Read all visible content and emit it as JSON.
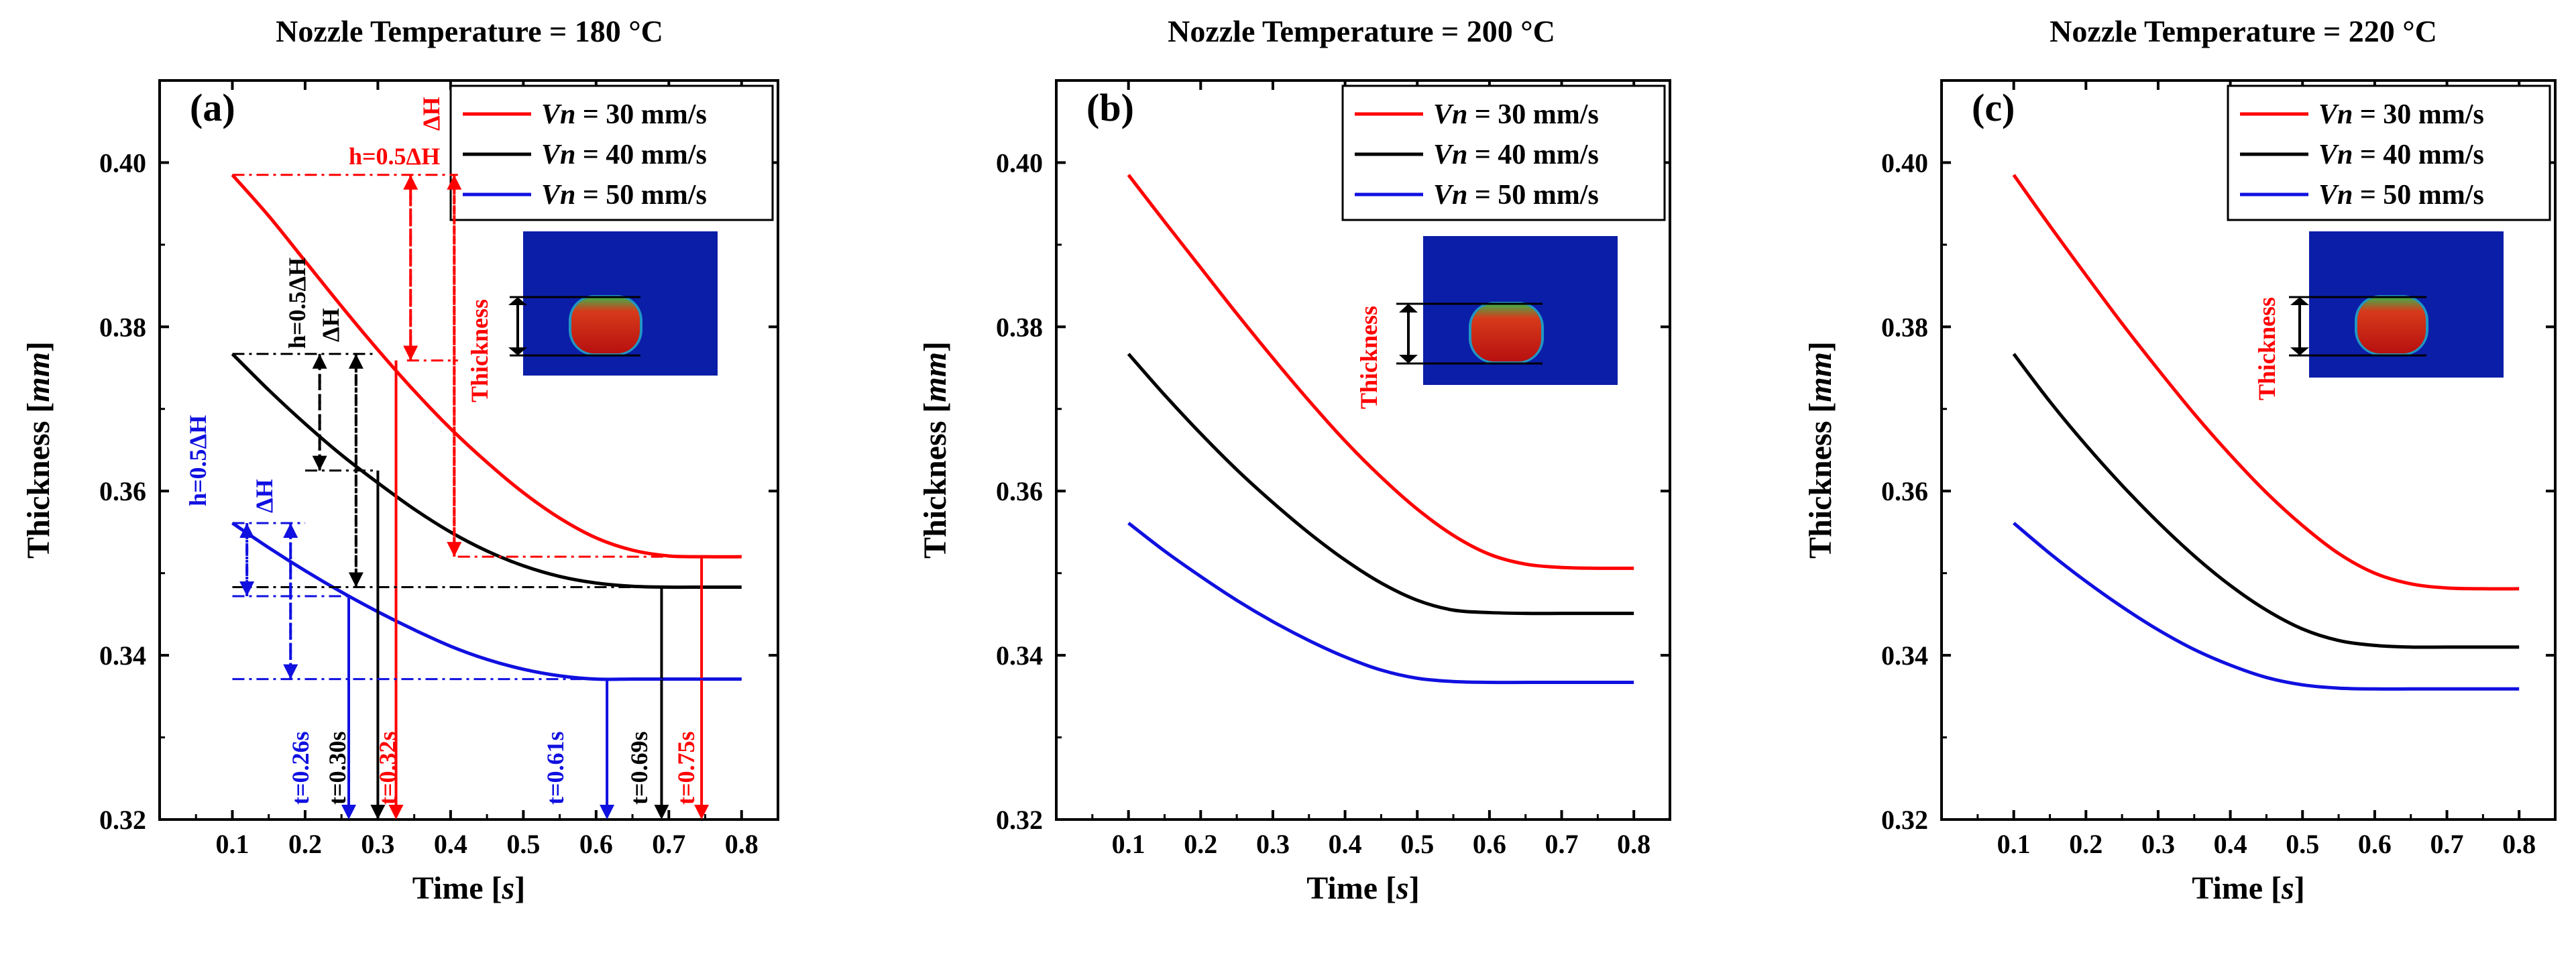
{
  "figure": {
    "y_label": "Thickness",
    "y_unit": "mm",
    "x_label": "Time",
    "x_unit": "s",
    "inset_label": "Thickness"
  },
  "colors": {
    "red": "#ff0000",
    "black": "#000000",
    "blue": "#1010e0"
  },
  "chart_data": [
    {
      "type": "line",
      "panel": "(a)",
      "title": "Nozzle Temperature = 180 °C",
      "xlabel": "Time [s]",
      "ylabel": "Thickness [mm]",
      "xlim": [
        0.0,
        0.85
      ],
      "ylim": [
        0.32,
        0.41
      ],
      "xticks": [
        0.1,
        0.2,
        0.3,
        0.4,
        0.5,
        0.6,
        0.7,
        0.8
      ],
      "xtick_labels": [
        "0.1",
        "0.2",
        "0.3",
        "0.4",
        "0.5",
        "0.6",
        "0.7",
        "0.8"
      ],
      "yticks": [
        0.32,
        0.34,
        0.36,
        0.38,
        0.4
      ],
      "ytick_labels": [
        "0.32",
        "0.34",
        "0.36",
        "0.38",
        "0.40"
      ],
      "legend_position": "top-right",
      "series": [
        {
          "name": "Vn = 30 mm/s",
          "legend_var": "Vn",
          "legend_rest": " = 30 mm/s",
          "color": "#ff0000",
          "x": [
            0.1,
            0.15,
            0.2,
            0.25,
            0.3,
            0.35,
            0.4,
            0.45,
            0.5,
            0.55,
            0.6,
            0.65,
            0.7,
            0.75,
            0.8
          ],
          "y": [
            0.3985,
            0.3935,
            0.388,
            0.3825,
            0.3772,
            0.3722,
            0.3676,
            0.3635,
            0.3598,
            0.3567,
            0.3543,
            0.3528,
            0.3521,
            0.352,
            0.352
          ]
        },
        {
          "name": "Vn = 40 mm/s",
          "legend_var": "Vn",
          "legend_rest": " = 40 mm/s",
          "color": "#000000",
          "x": [
            0.1,
            0.15,
            0.2,
            0.25,
            0.3,
            0.35,
            0.4,
            0.45,
            0.5,
            0.55,
            0.6,
            0.65,
            0.7,
            0.75,
            0.8
          ],
          "y": [
            0.3767,
            0.3723,
            0.3682,
            0.3644,
            0.361,
            0.3578,
            0.355,
            0.3527,
            0.3509,
            0.3496,
            0.3488,
            0.3484,
            0.3483,
            0.3483,
            0.3483
          ]
        },
        {
          "name": "Vn = 50 mm/s",
          "legend_var": "Vn",
          "legend_rest": " = 50 mm/s",
          "color": "#1010e0",
          "x": [
            0.1,
            0.15,
            0.2,
            0.25,
            0.3,
            0.35,
            0.4,
            0.45,
            0.5,
            0.55,
            0.6,
            0.65,
            0.7,
            0.75,
            0.8
          ],
          "y": [
            0.3561,
            0.3531,
            0.3503,
            0.3477,
            0.3453,
            0.3431,
            0.3411,
            0.3395,
            0.3383,
            0.3375,
            0.3371,
            0.3371,
            0.3371,
            0.3371,
            0.3371
          ]
        }
      ],
      "annotations": {
        "h_red": "h=0.5ΔH",
        "dh_red": "ΔH",
        "h_black": "h=0.5ΔH",
        "dh_black": "ΔH",
        "h_blue": "h=0.5ΔH",
        "dh_blue": "ΔH",
        "t_blue_half": "t=0.26s",
        "t_black_half": "t=0.30s",
        "t_red_half": "t=0.32s",
        "t_blue_full": "t=0.61s",
        "t_black_full": "t=0.69s",
        "t_red_full": "t=0.75s"
      }
    },
    {
      "type": "line",
      "panel": "(b)",
      "title": "Nozzle Temperature = 200 °C",
      "xlabel": "Time [s]",
      "ylabel": "Thickness [mm]",
      "xlim": [
        0.0,
        0.85
      ],
      "ylim": [
        0.32,
        0.41
      ],
      "xticks": [
        0.1,
        0.2,
        0.3,
        0.4,
        0.5,
        0.6,
        0.7,
        0.8
      ],
      "xtick_labels": [
        "0.1",
        "0.2",
        "0.3",
        "0.4",
        "0.5",
        "0.6",
        "0.7",
        "0.8"
      ],
      "yticks": [
        0.32,
        0.34,
        0.36,
        0.38,
        0.4
      ],
      "ytick_labels": [
        "0.32",
        "0.34",
        "0.36",
        "0.38",
        "0.40"
      ],
      "legend_position": "top-right",
      "series": [
        {
          "name": "Vn = 30 mm/s",
          "legend_var": "Vn",
          "legend_rest": " = 30 mm/s",
          "color": "#ff0000",
          "x": [
            0.1,
            0.15,
            0.2,
            0.25,
            0.3,
            0.35,
            0.4,
            0.45,
            0.5,
            0.55,
            0.6,
            0.65,
            0.7,
            0.75,
            0.8
          ],
          "y": [
            0.3985,
            0.3928,
            0.3872,
            0.3816,
            0.3762,
            0.371,
            0.3661,
            0.3617,
            0.3578,
            0.3546,
            0.3523,
            0.3511,
            0.3507,
            0.3506,
            0.3506
          ]
        },
        {
          "name": "Vn = 40 mm/s",
          "legend_var": "Vn",
          "legend_rest": " = 40 mm/s",
          "color": "#000000",
          "x": [
            0.1,
            0.15,
            0.2,
            0.25,
            0.3,
            0.35,
            0.4,
            0.45,
            0.5,
            0.55,
            0.6,
            0.65,
            0.7,
            0.75,
            0.8
          ],
          "y": [
            0.3767,
            0.3717,
            0.367,
            0.3626,
            0.3586,
            0.3549,
            0.3516,
            0.3488,
            0.3467,
            0.3455,
            0.3452,
            0.3451,
            0.3451,
            0.3451,
            0.3451
          ]
        },
        {
          "name": "Vn = 50 mm/s",
          "legend_var": "Vn",
          "legend_rest": " = 50 mm/s",
          "color": "#1010e0",
          "x": [
            0.1,
            0.15,
            0.2,
            0.25,
            0.3,
            0.35,
            0.4,
            0.45,
            0.5,
            0.55,
            0.6,
            0.65,
            0.7,
            0.75,
            0.8
          ],
          "y": [
            0.3561,
            0.3527,
            0.3496,
            0.3467,
            0.3441,
            0.3418,
            0.3398,
            0.3382,
            0.3372,
            0.3368,
            0.3367,
            0.3367,
            0.3367,
            0.3367,
            0.3367
          ]
        }
      ]
    },
    {
      "type": "line",
      "panel": "(c)",
      "title": "Nozzle Temperature = 220 °C",
      "xlabel": "Time [s]",
      "ylabel": "Thickness [mm]",
      "xlim": [
        0.0,
        0.85
      ],
      "ylim": [
        0.32,
        0.41
      ],
      "xticks": [
        0.1,
        0.2,
        0.3,
        0.4,
        0.5,
        0.6,
        0.7,
        0.8
      ],
      "xtick_labels": [
        "0.1",
        "0.2",
        "0.3",
        "0.4",
        "0.5",
        "0.6",
        "0.7",
        "0.8"
      ],
      "yticks": [
        0.32,
        0.34,
        0.36,
        0.38,
        0.4
      ],
      "ytick_labels": [
        "0.32",
        "0.34",
        "0.36",
        "0.38",
        "0.40"
      ],
      "legend_position": "top-right",
      "series": [
        {
          "name": "Vn = 30 mm/s",
          "legend_var": "Vn",
          "legend_rest": " = 30 mm/s",
          "color": "#ff0000",
          "x": [
            0.1,
            0.15,
            0.2,
            0.25,
            0.3,
            0.35,
            0.4,
            0.45,
            0.5,
            0.55,
            0.6,
            0.65,
            0.7,
            0.75,
            0.8
          ],
          "y": [
            0.3985,
            0.3923,
            0.3863,
            0.3804,
            0.3748,
            0.3694,
            0.3644,
            0.3598,
            0.3558,
            0.3524,
            0.35,
            0.3487,
            0.3482,
            0.3481,
            0.3481
          ]
        },
        {
          "name": "Vn = 40 mm/s",
          "legend_var": "Vn",
          "legend_rest": " = 40 mm/s",
          "color": "#000000",
          "x": [
            0.1,
            0.15,
            0.2,
            0.25,
            0.3,
            0.35,
            0.4,
            0.45,
            0.5,
            0.55,
            0.6,
            0.65,
            0.7,
            0.75,
            0.8
          ],
          "y": [
            0.3767,
            0.3709,
            0.3656,
            0.3607,
            0.3562,
            0.3521,
            0.3485,
            0.3455,
            0.3432,
            0.3418,
            0.3412,
            0.341,
            0.341,
            0.341,
            0.341
          ]
        },
        {
          "name": "Vn = 50 mm/s",
          "legend_var": "Vn",
          "legend_rest": " = 50 mm/s",
          "color": "#1010e0",
          "x": [
            0.1,
            0.15,
            0.2,
            0.25,
            0.3,
            0.35,
            0.4,
            0.45,
            0.5,
            0.55,
            0.6,
            0.65,
            0.7,
            0.75,
            0.8
          ],
          "y": [
            0.3561,
            0.3524,
            0.349,
            0.3459,
            0.3431,
            0.3407,
            0.3388,
            0.3373,
            0.3364,
            0.336,
            0.3359,
            0.3359,
            0.3359,
            0.3359,
            0.3359
          ]
        }
      ]
    }
  ]
}
